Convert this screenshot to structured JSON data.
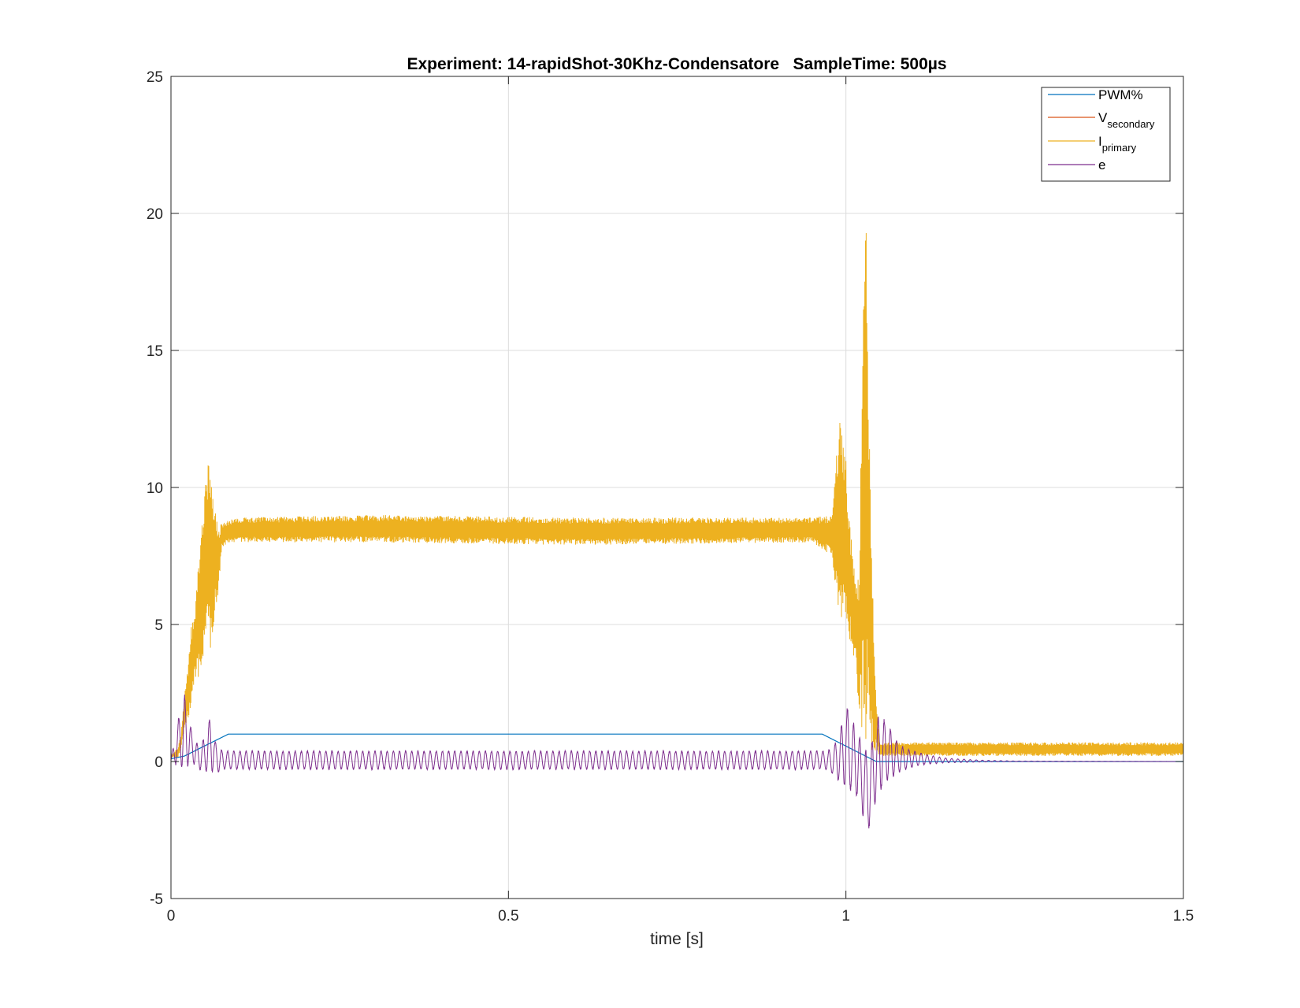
{
  "chart_data": {
    "type": "line",
    "title": "Experiment: 14-rapidShot-30Khz-Condensatore   SampleTime: 500µs",
    "xlabel": "time [s]",
    "ylabel": "",
    "xlim": [
      0,
      1.5
    ],
    "ylim": [
      -5,
      25
    ],
    "xticks": [
      0,
      0.5,
      1,
      1.5
    ],
    "xtick_labels": [
      "0",
      "0.5",
      "1",
      "1.5"
    ],
    "yticks": [
      -5,
      0,
      5,
      10,
      15,
      20,
      25
    ],
    "ytick_labels": [
      "-5",
      "0",
      "5",
      "10",
      "15",
      "20",
      "25"
    ],
    "grid": true,
    "legend_position": "top-right",
    "series": [
      {
        "name": "PWM%",
        "legend_main": "PWM%",
        "legend_sub": "",
        "color": "#0072BD",
        "points": [
          [
            0,
            0.1
          ],
          [
            0.02,
            0.2
          ],
          [
            0.085,
            1.0
          ],
          [
            0.965,
            1.0
          ],
          [
            1.045,
            0.0
          ],
          [
            1.5,
            0.0
          ]
        ]
      },
      {
        "name": "V_secondary",
        "legend_main": "V",
        "legend_sub": "secondary",
        "color": "#D95319",
        "points": []
      },
      {
        "name": "I_primary",
        "legend_main": "I",
        "legend_sub": "primary",
        "color": "#EDB120",
        "envelope": [
          [
            0,
            0.2,
            0.2
          ],
          [
            0.01,
            0.1,
            0.5
          ],
          [
            0.015,
            0.5,
            1.0
          ],
          [
            0.02,
            1.0,
            2.5
          ],
          [
            0.025,
            1.5,
            3.5
          ],
          [
            0.03,
            2.0,
            5.0
          ],
          [
            0.035,
            3.0,
            5.5
          ],
          [
            0.04,
            3.0,
            7.0
          ],
          [
            0.045,
            3.5,
            8.5
          ],
          [
            0.05,
            4.0,
            10.0
          ],
          [
            0.055,
            4.5,
            11.0
          ],
          [
            0.06,
            4.0,
            10.5
          ],
          [
            0.065,
            5.5,
            9.5
          ],
          [
            0.07,
            6.0,
            8.5
          ],
          [
            0.075,
            7.8,
            8.7
          ],
          [
            0.085,
            8.0,
            8.8
          ],
          [
            0.1,
            8.0,
            8.9
          ],
          [
            0.3,
            8.0,
            9.0
          ],
          [
            0.6,
            7.9,
            8.9
          ],
          [
            0.95,
            8.0,
            8.9
          ],
          [
            0.98,
            7.5,
            9.0
          ],
          [
            0.985,
            6.0,
            11.0
          ],
          [
            0.99,
            5.0,
            12.5
          ],
          [
            0.995,
            5.0,
            12.0
          ],
          [
            1.0,
            5.5,
            11.0
          ],
          [
            1.005,
            4.5,
            9.0
          ],
          [
            1.01,
            4.0,
            7.5
          ],
          [
            1.015,
            3.5,
            6.5
          ],
          [
            1.02,
            1.5,
            7.0
          ],
          [
            1.025,
            1.0,
            17.0
          ],
          [
            1.03,
            0.8,
            20.3
          ],
          [
            1.035,
            0.5,
            12.0
          ],
          [
            1.04,
            0.3,
            6.0
          ],
          [
            1.045,
            0.3,
            2.5
          ],
          [
            1.05,
            0.2,
            0.7
          ],
          [
            1.1,
            0.2,
            0.7
          ],
          [
            1.5,
            0.2,
            0.7
          ]
        ]
      },
      {
        "name": "e",
        "legend_main": "e",
        "legend_sub": "",
        "color": "#7E2F8E",
        "envelope": [
          [
            0,
            0.0,
            0.1
          ],
          [
            0.01,
            -0.2,
            1.5
          ],
          [
            0.02,
            -0.3,
            2.5
          ],
          [
            0.025,
            -0.2,
            1.8
          ],
          [
            0.03,
            0.0,
            1.2
          ],
          [
            0.04,
            -0.3,
            0.6
          ],
          [
            0.05,
            -0.4,
            0.9
          ],
          [
            0.06,
            -0.5,
            1.9
          ],
          [
            0.065,
            -0.3,
            0.8
          ],
          [
            0.07,
            -0.4,
            0.5
          ],
          [
            0.08,
            -0.3,
            0.4
          ],
          [
            0.1,
            -0.3,
            0.4
          ],
          [
            0.5,
            -0.3,
            0.4
          ],
          [
            0.97,
            -0.3,
            0.4
          ],
          [
            0.98,
            -0.5,
            0.5
          ],
          [
            0.99,
            -0.8,
            1.0
          ],
          [
            1.0,
            -1.0,
            2.2
          ],
          [
            1.01,
            -1.2,
            1.5
          ],
          [
            1.02,
            -1.5,
            1.0
          ],
          [
            1.03,
            -2.5,
            0.5
          ],
          [
            1.035,
            -2.5,
            0.3
          ],
          [
            1.04,
            -2.0,
            1.0
          ],
          [
            1.045,
            -1.5,
            1.5
          ],
          [
            1.05,
            -1.2,
            1.8
          ],
          [
            1.06,
            -0.8,
            1.5
          ],
          [
            1.07,
            -0.6,
            1.0
          ],
          [
            1.08,
            -0.4,
            0.6
          ],
          [
            1.1,
            -0.2,
            0.4
          ],
          [
            1.12,
            -0.1,
            0.25
          ],
          [
            1.15,
            -0.05,
            0.12
          ],
          [
            1.2,
            -0.02,
            0.05
          ],
          [
            1.25,
            0.0,
            0.02
          ],
          [
            1.5,
            0.0,
            0.0
          ]
        ]
      }
    ]
  }
}
